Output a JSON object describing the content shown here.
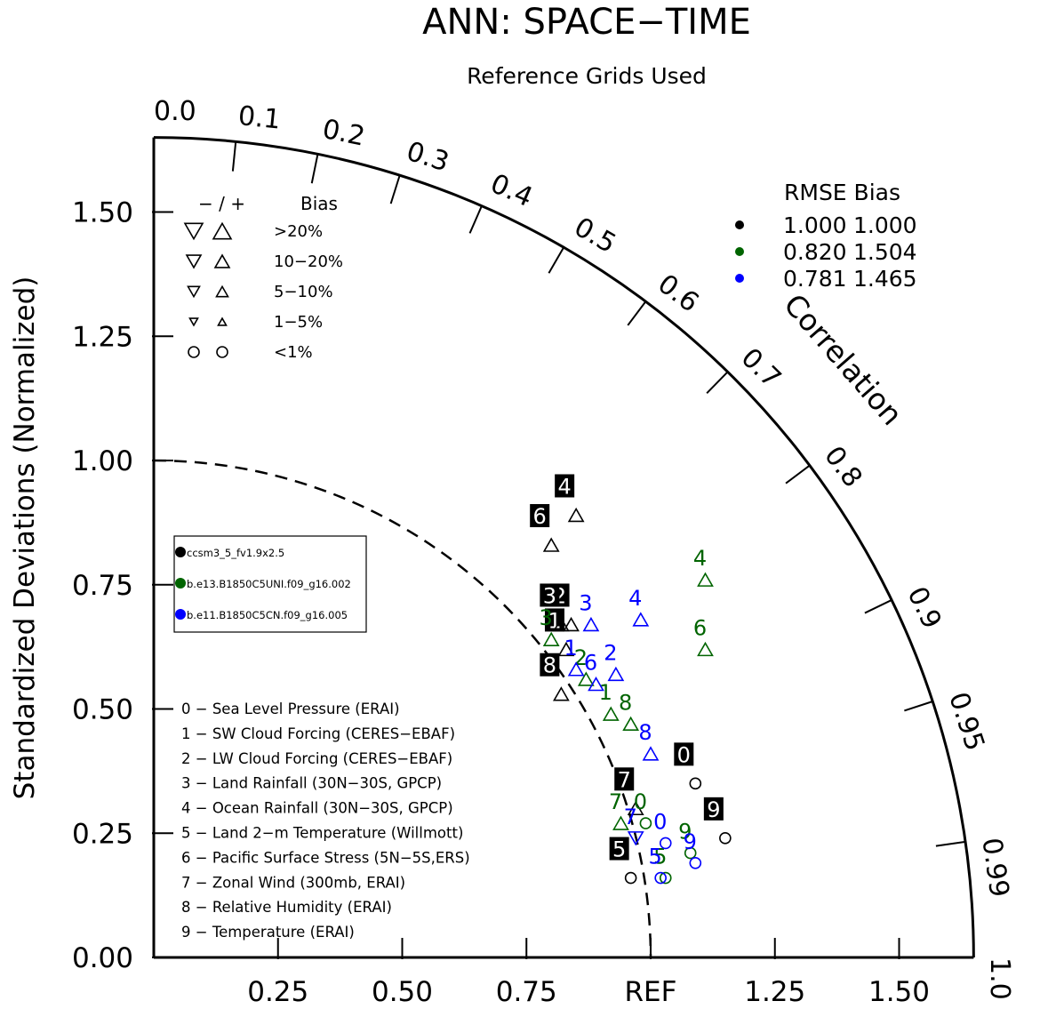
{
  "chart_data": {
    "type": "scatter",
    "chart_kind": "taylor-diagram",
    "title": "ANN: SPACE−TIME",
    "subtitle": "Reference Grids Used",
    "ylabel": "Standardized Deviations (Normalized)",
    "correlation_label": "Correlation",
    "ref_label": "REF",
    "std_range": [
      0,
      1.65
    ],
    "y_ticks": [
      "0.00",
      "0.25",
      "0.50",
      "0.75",
      "1.00",
      "1.25",
      "1.50"
    ],
    "x_ticks": [
      "0.25",
      "0.50",
      "0.75",
      "REF",
      "1.25",
      "1.50"
    ],
    "correlation_ticks": [
      "0.0",
      "0.1",
      "0.2",
      "0.3",
      "0.4",
      "0.5",
      "0.6",
      "0.7",
      "0.8",
      "0.9",
      "0.95",
      "0.99",
      "1.0"
    ],
    "bias_legend": {
      "header_sign": "− / +",
      "header_bias": "Bias",
      "rows": [
        {
          "label": ">20%",
          "symbol": "triangle"
        },
        {
          "label": "10−20%",
          "symbol": "triangle"
        },
        {
          "label": "5−10%",
          "symbol": "triangle"
        },
        {
          "label": "1−5%",
          "symbol": "triangle"
        },
        {
          "label": "<1%",
          "symbol": "circle"
        }
      ]
    },
    "rmse_table": {
      "header": "RMSE  Bias",
      "rows": [
        {
          "rmse": "1.000",
          "bias": "1.000",
          "color": "#000000"
        },
        {
          "rmse": "0.820",
          "bias": "1.504",
          "color": "#006400"
        },
        {
          "rmse": "0.781",
          "bias": "1.465",
          "color": "#0000ff"
        }
      ]
    },
    "series": [
      {
        "name": "ccsm3_5_fv1.9x2.5",
        "color": "#000000",
        "points": [
          {
            "id": "0",
            "x": 1.09,
            "y": 0.35,
            "marker": "circle"
          },
          {
            "id": "1",
            "x": 0.83,
            "y": 0.62,
            "marker": "triangle-up"
          },
          {
            "id": "2",
            "x": 0.84,
            "y": 0.67,
            "marker": "triangle-up"
          },
          {
            "id": "3",
            "x": 0.82,
            "y": 0.67,
            "marker": "triangle-up"
          },
          {
            "id": "4",
            "x": 0.85,
            "y": 0.89,
            "marker": "triangle-up"
          },
          {
            "id": "5",
            "x": 0.96,
            "y": 0.16,
            "marker": "circle"
          },
          {
            "id": "6",
            "x": 0.8,
            "y": 0.83,
            "marker": "triangle-up"
          },
          {
            "id": "7",
            "x": 0.97,
            "y": 0.3,
            "marker": "triangle-up"
          },
          {
            "id": "8",
            "x": 0.82,
            "y": 0.53,
            "marker": "triangle-up"
          },
          {
            "id": "9",
            "x": 1.15,
            "y": 0.24,
            "marker": "circle"
          }
        ]
      },
      {
        "name": "b.e13.B1850C5UNI.f09_g16.002",
        "color": "#006400",
        "points": [
          {
            "id": "0",
            "x": 0.99,
            "y": 0.27,
            "marker": "circle"
          },
          {
            "id": "1",
            "x": 0.92,
            "y": 0.49,
            "marker": "triangle-up"
          },
          {
            "id": "2",
            "x": 0.87,
            "y": 0.56,
            "marker": "triangle-up"
          },
          {
            "id": "3",
            "x": 0.8,
            "y": 0.64,
            "marker": "triangle-up"
          },
          {
            "id": "4",
            "x": 1.11,
            "y": 0.76,
            "marker": "triangle-up"
          },
          {
            "id": "5",
            "x": 1.03,
            "y": 0.16,
            "marker": "circle"
          },
          {
            "id": "6",
            "x": 1.11,
            "y": 0.62,
            "marker": "triangle-up"
          },
          {
            "id": "7",
            "x": 0.94,
            "y": 0.27,
            "marker": "triangle-up"
          },
          {
            "id": "8",
            "x": 0.96,
            "y": 0.47,
            "marker": "triangle-up"
          },
          {
            "id": "9",
            "x": 1.08,
            "y": 0.21,
            "marker": "circle"
          }
        ]
      },
      {
        "name": "b.e11.B1850C5CN.f09_g16.005",
        "color": "#0000ff",
        "points": [
          {
            "id": "0",
            "x": 1.03,
            "y": 0.23,
            "marker": "circle"
          },
          {
            "id": "1",
            "x": 0.85,
            "y": 0.58,
            "marker": "triangle-up"
          },
          {
            "id": "2",
            "x": 0.93,
            "y": 0.57,
            "marker": "triangle-up"
          },
          {
            "id": "3",
            "x": 0.88,
            "y": 0.67,
            "marker": "triangle-up"
          },
          {
            "id": "4",
            "x": 0.98,
            "y": 0.68,
            "marker": "triangle-up"
          },
          {
            "id": "5",
            "x": 1.02,
            "y": 0.16,
            "marker": "circle"
          },
          {
            "id": "6",
            "x": 0.89,
            "y": 0.55,
            "marker": "triangle-up"
          },
          {
            "id": "7",
            "x": 0.97,
            "y": 0.24,
            "marker": "triangle-down"
          },
          {
            "id": "8",
            "x": 1.0,
            "y": 0.41,
            "marker": "triangle-up"
          },
          {
            "id": "9",
            "x": 1.09,
            "y": 0.19,
            "marker": "circle"
          }
        ]
      }
    ],
    "variable_legend": [
      "0 − Sea Level Pressure (ERAI)",
      "1 − SW Cloud Forcing (CERES−EBAF)",
      "2 − LW Cloud Forcing (CERES−EBAF)",
      "3 − Land Rainfall (30N−30S, GPCP)",
      "4 − Ocean Rainfall (30N−30S, GPCP)",
      "5 − Land 2−m Temperature (Willmott)",
      "6 − Pacific Surface Stress (5N−5S,ERS)",
      "7 − Zonal Wind (300mb, ERAI)",
      "8 − Relative Humidity (ERAI)",
      "9 − Temperature (ERAI)"
    ]
  }
}
